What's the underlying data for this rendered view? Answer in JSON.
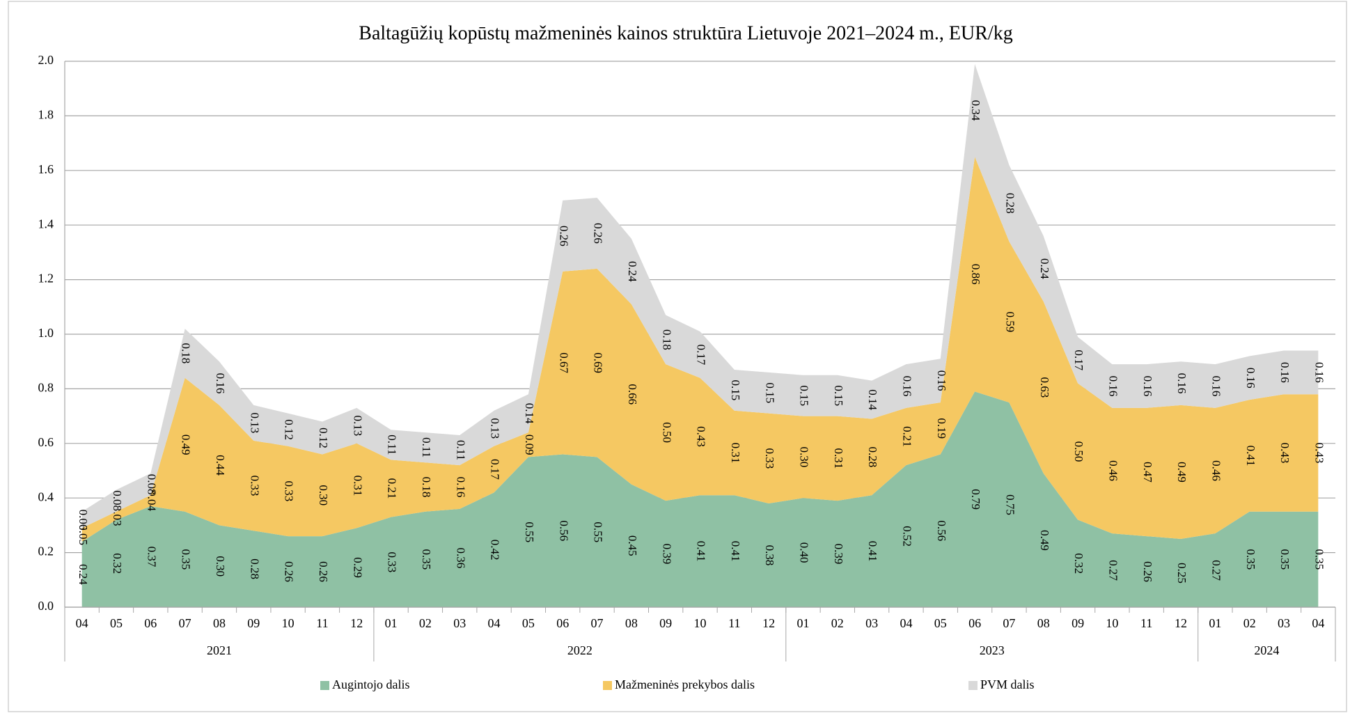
{
  "chart_data": {
    "type": "stacked_area",
    "title": "Baltagūžių kopūstų mažmeninės kainos struktūra Lietuvoje 2021–2024 m., EUR/kg",
    "categories": [
      "04",
      "05",
      "06",
      "07",
      "08",
      "09",
      "10",
      "11",
      "12",
      "01",
      "02",
      "03",
      "04",
      "05",
      "06",
      "07",
      "08",
      "09",
      "10",
      "11",
      "12",
      "01",
      "02",
      "03",
      "04",
      "05",
      "06",
      "07",
      "08",
      "09",
      "10",
      "11",
      "12",
      "01",
      "02",
      "03",
      "04"
    ],
    "category_years": [
      "2021",
      "2021",
      "2021",
      "2021",
      "2021",
      "2021",
      "2021",
      "2021",
      "2021",
      "2022",
      "2022",
      "2022",
      "2022",
      "2022",
      "2022",
      "2022",
      "2022",
      "2022",
      "2022",
      "2022",
      "2022",
      "2023",
      "2023",
      "2023",
      "2023",
      "2023",
      "2023",
      "2023",
      "2023",
      "2023",
      "2023",
      "2023",
      "2023",
      "2024",
      "2024",
      "2024",
      "2024"
    ],
    "series": [
      {
        "name": "Augintojo dalis",
        "color": "#8fc1a4",
        "values": [
          0.24,
          0.32,
          0.37,
          0.35,
          0.3,
          0.28,
          0.26,
          0.26,
          0.29,
          0.33,
          0.35,
          0.36,
          0.42,
          0.55,
          0.56,
          0.55,
          0.45,
          0.39,
          0.41,
          0.41,
          0.38,
          0.4,
          0.39,
          0.41,
          0.52,
          0.56,
          0.79,
          0.75,
          0.49,
          0.32,
          0.27,
          0.26,
          0.25,
          0.27,
          0.35,
          0.35,
          0.35
        ],
        "value_labels": [
          "0.24",
          "0.32",
          "0.37",
          "0.35",
          "0.30",
          "0.28",
          "0.26",
          "0.26",
          "0.29",
          "0.33",
          "0.35",
          "0.36",
          "0.42",
          "0.55",
          "0.56",
          "0.55",
          "0.45",
          "0.39",
          "0.41",
          "0.41",
          "0.38",
          "0.40",
          "0.39",
          "0.41",
          "0.52",
          "0.56",
          "0.79",
          "0.75",
          "0.49",
          "0.32",
          "0.27",
          "0.26",
          "0.25",
          "0.27",
          "0.35",
          "0.35",
          "0.35"
        ]
      },
      {
        "name": "Mažmeninės prekybos dalis",
        "color": "#f5c862",
        "values": [
          0.05,
          0.03,
          0.04,
          0.49,
          0.44,
          0.33,
          0.33,
          0.3,
          0.31,
          0.21,
          0.18,
          0.16,
          0.17,
          0.09,
          0.67,
          0.69,
          0.66,
          0.5,
          0.43,
          0.31,
          0.33,
          0.3,
          0.31,
          0.28,
          0.21,
          0.19,
          0.86,
          0.59,
          0.63,
          0.5,
          0.46,
          0.47,
          0.49,
          0.46,
          0.41,
          0.43,
          0.43
        ],
        "value_labels": [
          "0.05",
          "0.03",
          "0.04",
          "0.49",
          "0.44",
          "0.33",
          "0.33",
          "0.30",
          "0.31",
          "0.21",
          "0.18",
          "0.16",
          "0.17",
          "0.09",
          "0.67",
          "0.69",
          "0.66",
          "0.50",
          "0.43",
          "0.31",
          "0.33",
          "0.30",
          "0.31",
          "0.28",
          "0.21",
          "0.19",
          "0.86",
          "0.59",
          "0.63",
          "0.50",
          "0.46",
          "0.47",
          "0.49",
          "0.46",
          "0.41",
          "0.43",
          "0.43"
        ]
      },
      {
        "name": "PVM dalis",
        "color": "#d9d9d9",
        "values": [
          0.06,
          0.08,
          0.08,
          0.18,
          0.16,
          0.13,
          0.12,
          0.12,
          0.13,
          0.11,
          0.11,
          0.11,
          0.13,
          0.14,
          0.26,
          0.26,
          0.24,
          0.18,
          0.17,
          0.15,
          0.15,
          0.15,
          0.15,
          0.14,
          0.16,
          0.16,
          0.34,
          0.28,
          0.24,
          0.17,
          0.16,
          0.16,
          0.16,
          0.16,
          0.16,
          0.16,
          0.16
        ],
        "value_labels": [
          "0.06",
          "0.08",
          "0.08",
          "0.18",
          "0.16",
          "0.13",
          "0.12",
          "0.12",
          "0.13",
          "0.11",
          "0.11",
          "0.11",
          "0.13",
          "0.14",
          "0.26",
          "0.26",
          "0.24",
          "0.18",
          "0.17",
          "0.15",
          "0.15",
          "0.15",
          "0.15",
          "0.14",
          "0.16",
          "0.16",
          "0.34",
          "0.28",
          "0.24",
          "0.17",
          "0.16",
          "0.16",
          "0.16",
          "0.16",
          "0.16",
          "0.16",
          "0.16"
        ]
      }
    ],
    "ylim": [
      0,
      2
    ],
    "yticks": [
      {
        "value": 0,
        "label": "0.0"
      },
      0.2,
      0.4,
      0.6,
      0.8,
      {
        "value": 1,
        "label": "1.0"
      },
      1.2,
      1.4,
      1.6,
      1.8,
      {
        "value": 2,
        "label": "2.0"
      }
    ],
    "grid": true,
    "legend": "bottom"
  }
}
